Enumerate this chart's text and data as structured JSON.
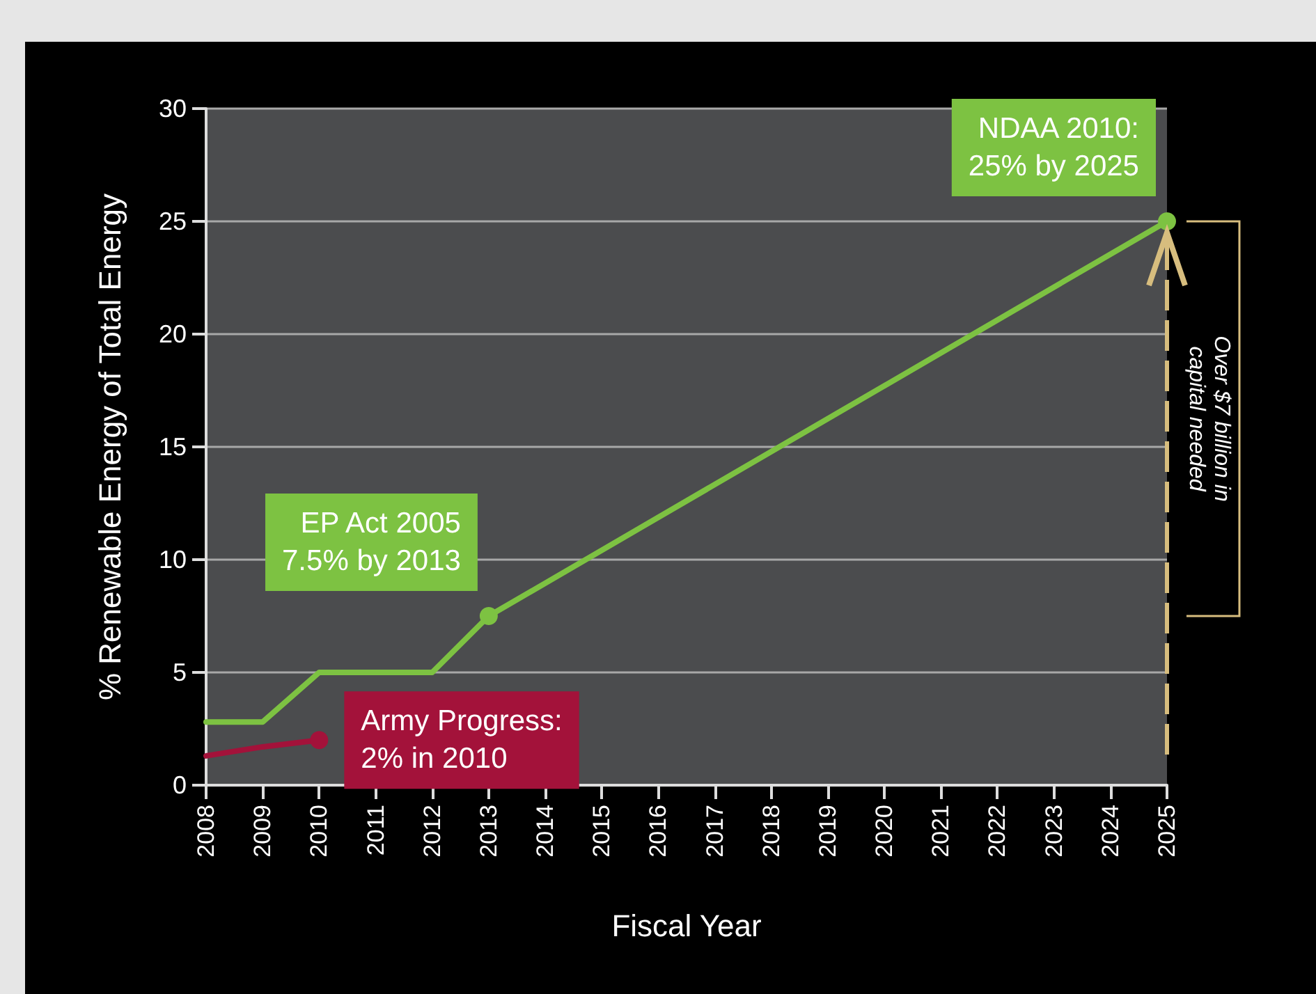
{
  "chart_data": {
    "type": "line",
    "xlabel": "Fiscal Year",
    "ylabel": "% Renewable Energy of Total Energy",
    "categories": [
      "2008",
      "2009",
      "2010",
      "2011",
      "2012",
      "2013",
      "2014",
      "2015",
      "2016",
      "2017",
      "2018",
      "2019",
      "2020",
      "2021",
      "2022",
      "2023",
      "2024",
      "2025"
    ],
    "series": [
      {
        "color": "#7dc242",
        "values": [
          2.8,
          2.8,
          5,
          5,
          5,
          7.5,
          null,
          null,
          null,
          null,
          null,
          null,
          null,
          null,
          null,
          null,
          null,
          25
        ]
      },
      {
        "color": "#a3123a",
        "values": [
          1.3,
          1.7,
          2,
          null,
          null,
          null,
          null,
          null,
          null,
          null,
          null,
          null,
          null,
          null,
          null,
          null,
          null,
          null
        ]
      }
    ],
    "ylim": [
      0,
      30
    ],
    "yticks": [
      0,
      5,
      10,
      15,
      20,
      25,
      30
    ],
    "grid": "y",
    "line_style": "solid",
    "annotations": [
      {
        "text": "EP Act 2005\n7.5% by 2013",
        "x": "2013",
        "y": 7.5
      },
      {
        "text": "NDAA 2010:\n25% by 2025",
        "x": "2025",
        "y": 25
      },
      {
        "text": "Army Progress:\n2% in 2010",
        "x": "2010",
        "y": 2
      },
      "Over $7 billion in\ncapital needed"
    ]
  }
}
